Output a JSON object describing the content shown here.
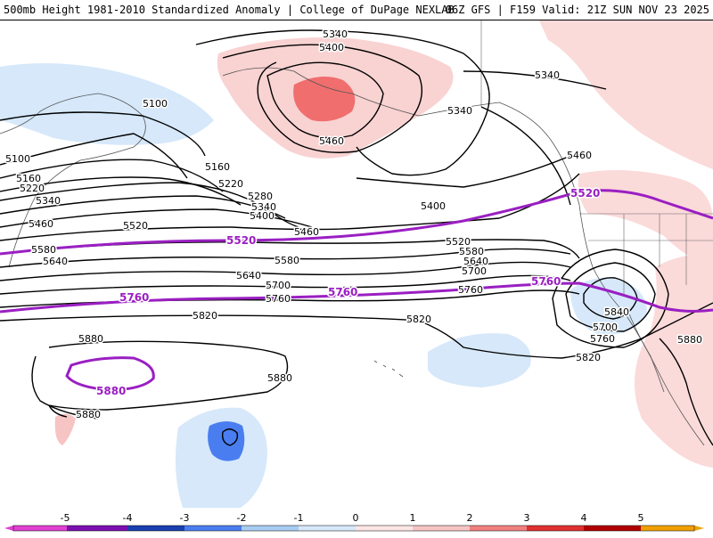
{
  "header": {
    "left_title": "500mb Height 1981-2010 Standardized Anomaly | College of DuPage NEXLAB",
    "right_title": "06Z GFS | F159 Valid: 21Z SUN NOV 23 2025"
  },
  "contour_labels": {
    "black": [
      "5340",
      "5400",
      "5340",
      "5340",
      "5100",
      "5460",
      "5100",
      "5160",
      "5160",
      "5220",
      "5220",
      "5280",
      "5340",
      "5400",
      "5340",
      "5460",
      "5460",
      "5400",
      "5520",
      "5460",
      "5580",
      "5520",
      "5580",
      "5640",
      "5640",
      "5580",
      "5700",
      "5640",
      "5700",
      "5760",
      "5760",
      "5820",
      "5820",
      "5840",
      "5700",
      "5760",
      "5820",
      "5880",
      "5880",
      "5880",
      "5880"
    ],
    "purple": [
      "5520",
      "5520",
      "5760",
      "5760",
      "5760",
      "5880"
    ]
  },
  "colorbar": {
    "ticks": [
      "-5",
      "-4",
      "-3",
      "-2",
      "-1",
      "0",
      "1",
      "2",
      "3",
      "4",
      "5"
    ],
    "colors": {
      "neg5": "#e040d0",
      "neg4": "#7a10b0",
      "neg3": "#1a3fb0",
      "neg2": "#4a7ef0",
      "neg1": "#a8ccf2",
      "neg0": "#d6e8fa",
      "pos0": "#fde6e6",
      "pos1": "#f7c4c4",
      "pos2": "#f08080",
      "pos3": "#e03030",
      "pos4": "#b00000",
      "pos5": "#f0a000"
    }
  }
}
